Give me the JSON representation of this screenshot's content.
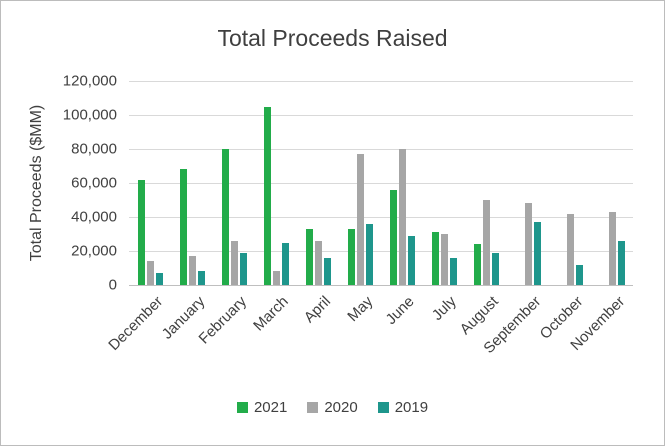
{
  "chart_data": {
    "type": "bar",
    "title": "Total Proceeds Raised",
    "xlabel": "",
    "ylabel": "Total Proceeds ($MM)",
    "ylim": [
      0,
      120000
    ],
    "ytick_step": 20000,
    "grid": true,
    "legend_position": "bottom",
    "categories": [
      "December",
      "January",
      "February",
      "March",
      "April",
      "May",
      "June",
      "July",
      "August",
      "September",
      "October",
      "November"
    ],
    "series": [
      {
        "name": "2021",
        "color": "#22ac4a",
        "values": [
          62000,
          68000,
          80000,
          105000,
          33000,
          33000,
          56000,
          31000,
          24000,
          0,
          0,
          0
        ]
      },
      {
        "name": "2020",
        "color": "#a6a6a6",
        "values": [
          14000,
          17000,
          26000,
          8000,
          26000,
          77000,
          80000,
          30000,
          50000,
          48000,
          42000,
          43000
        ]
      },
      {
        "name": "2019",
        "color": "#1e968c",
        "values": [
          7000,
          8000,
          19000,
          25000,
          16000,
          36000,
          29000,
          16000,
          19000,
          37000,
          12000,
          26000
        ]
      }
    ]
  },
  "colors": {
    "gridline": "#d9d9d9",
    "axis_line": "#bfbfbf",
    "text": "#404040",
    "frame_border": "#bcbcbc",
    "background": "#ffffff"
  }
}
